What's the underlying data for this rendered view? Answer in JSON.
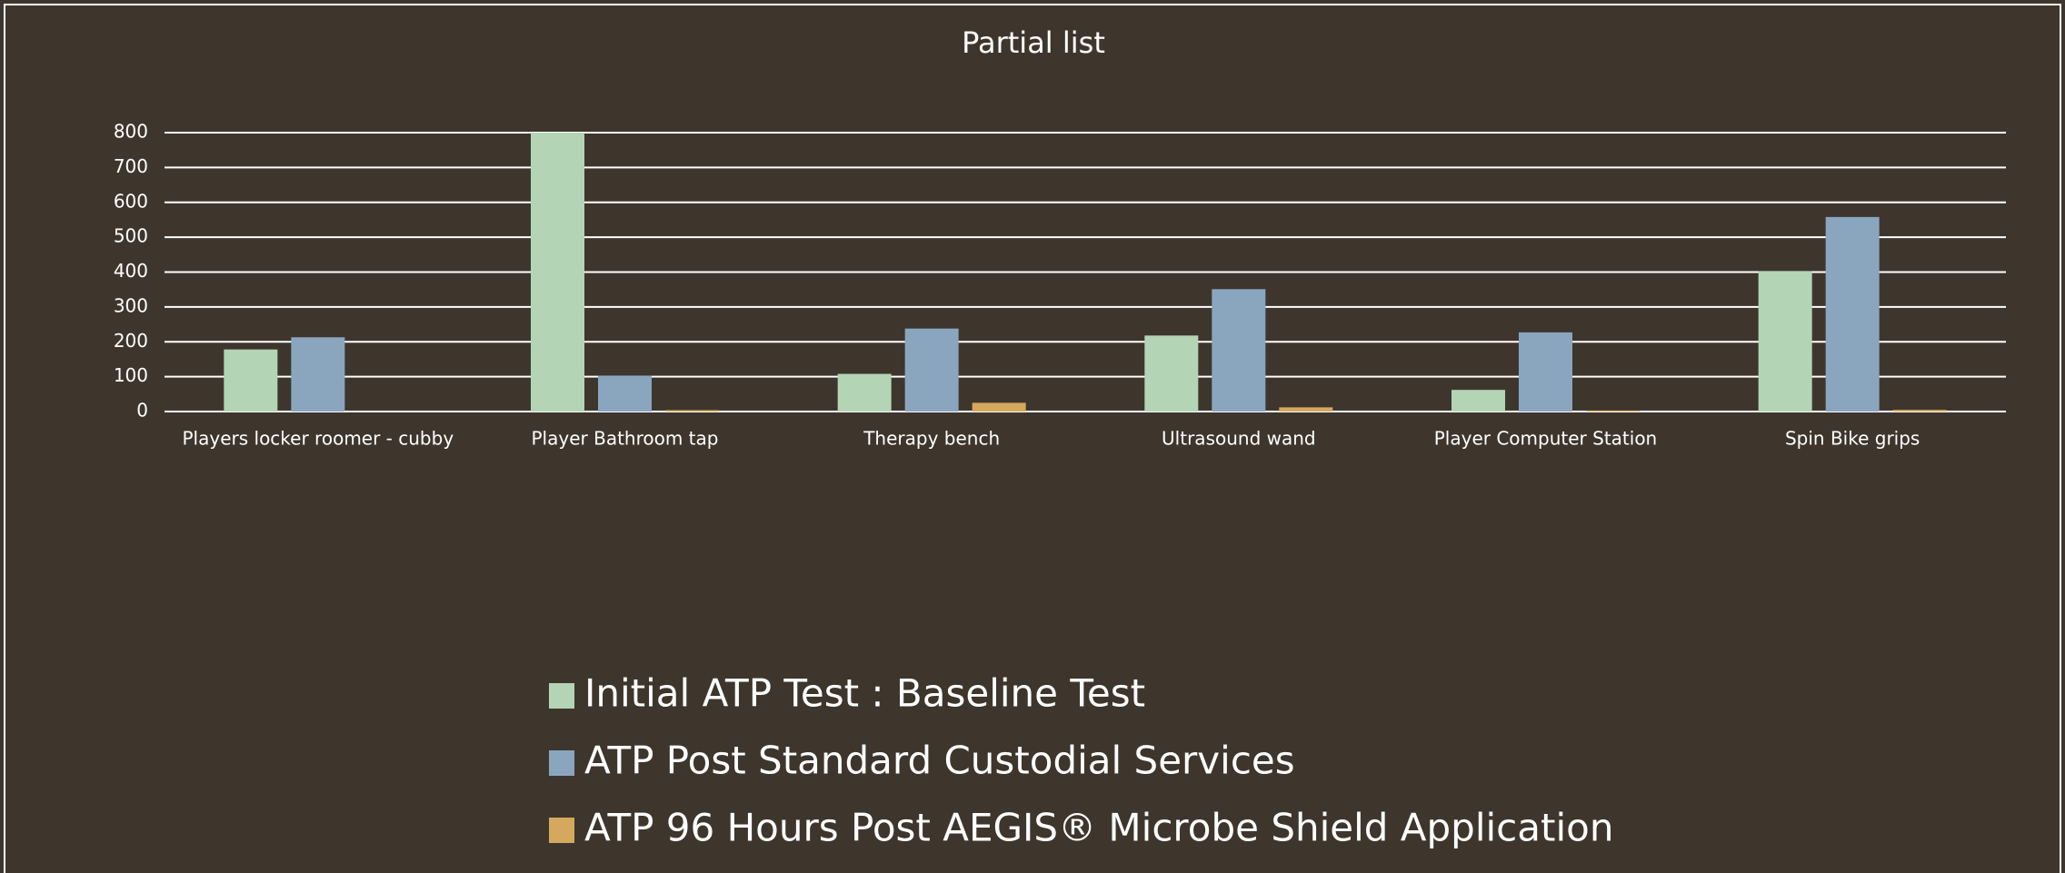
{
  "chart_data": {
    "type": "bar",
    "title": "Partial list",
    "categories": [
      "Players locker roomer - cubby",
      "Player Bathroom tap",
      "Therapy bench",
      "Ultrasound wand",
      "Player Computer Station",
      "Spin Bike grips"
    ],
    "series": [
      {
        "name": "Initial ATP Test : Baseline Test",
        "color": "#b3d4b5",
        "values": [
          178,
          800,
          108,
          218,
          62,
          403
        ]
      },
      {
        "name": "ATP Post Standard Custodial Services",
        "color": "#8aa6bf",
        "values": [
          213,
          103,
          238,
          351,
          227,
          558
        ]
      },
      {
        "name": "ATP 96 Hours Post AEGIS® Microbe Shield Application",
        "color": "#d4a85d",
        "values": [
          0,
          4,
          25,
          12,
          3,
          5
        ]
      }
    ],
    "ylim": [
      0,
      800
    ],
    "yticks": [
      0,
      100,
      200,
      300,
      400,
      500,
      600,
      700,
      800
    ],
    "grid": true,
    "legend": "bottom"
  }
}
